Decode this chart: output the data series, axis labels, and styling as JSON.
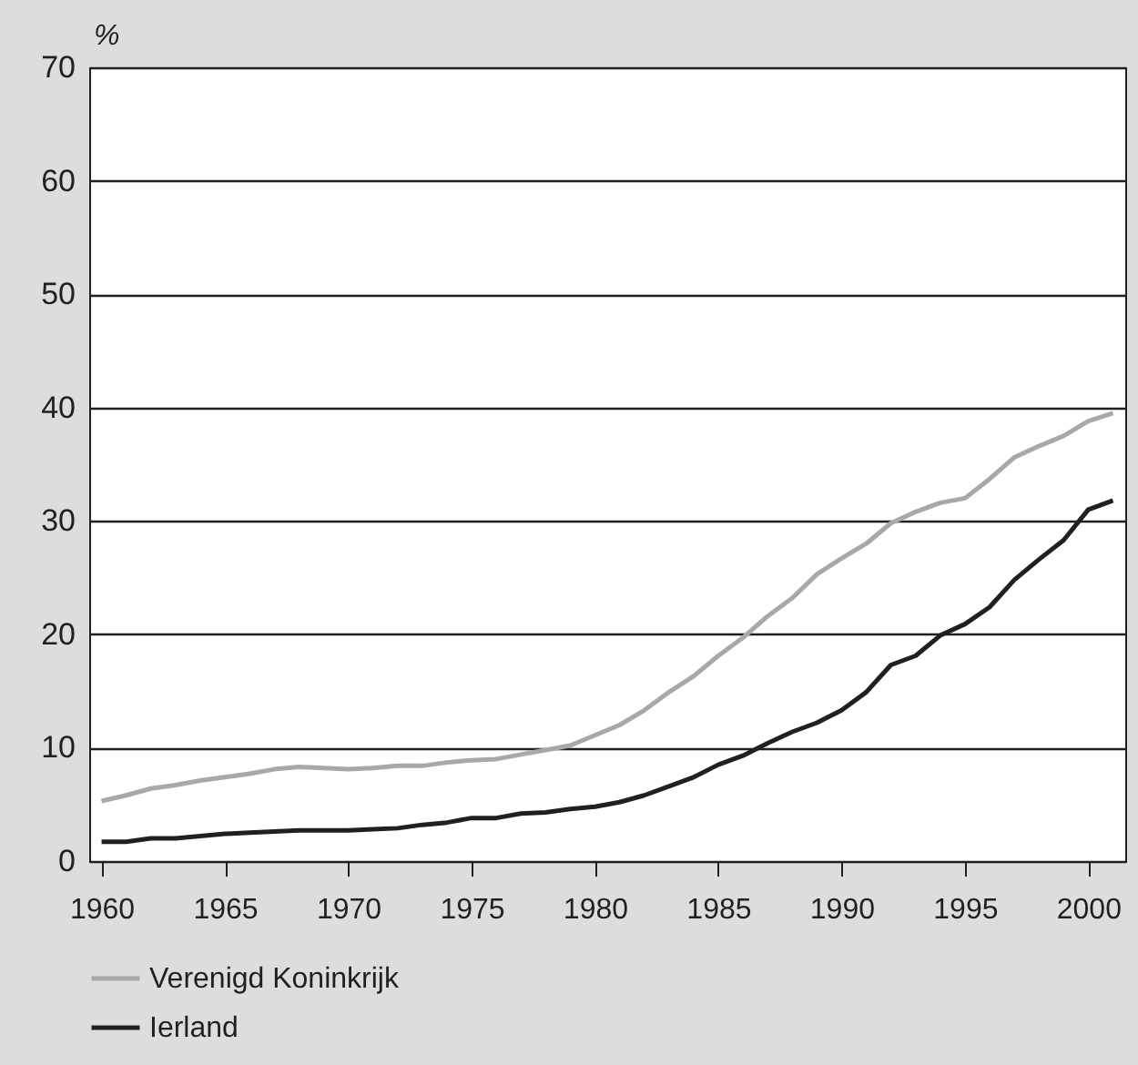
{
  "chart_data": {
    "type": "line",
    "ylabel": "%",
    "x": [
      1960,
      1961,
      1962,
      1963,
      1964,
      1965,
      1966,
      1967,
      1968,
      1969,
      1970,
      1971,
      1972,
      1973,
      1974,
      1975,
      1976,
      1977,
      1978,
      1979,
      1980,
      1981,
      1982,
      1983,
      1984,
      1985,
      1986,
      1987,
      1988,
      1989,
      1990,
      1991,
      1992,
      1993,
      1994,
      1995,
      1996,
      1997,
      1998,
      1999,
      2000,
      2001
    ],
    "series": [
      {
        "name": "Verenigd Koninkrijk",
        "color": "#a8a8a8",
        "values": [
          5.3,
          5.8,
          6.4,
          6.7,
          7.1,
          7.4,
          7.7,
          8.1,
          8.3,
          8.2,
          8.1,
          8.2,
          8.4,
          8.4,
          8.7,
          8.9,
          9.0,
          9.4,
          9.8,
          10.2,
          11.1,
          12.0,
          13.3,
          14.9,
          16.3,
          18.1,
          19.7,
          21.6,
          23.2,
          25.3,
          26.7,
          28.0,
          29.8,
          30.8,
          31.6,
          32.0,
          33.7,
          35.6,
          36.6,
          37.5,
          38.8,
          39.5
        ]
      },
      {
        "name": "Ierland",
        "color": "#231f20",
        "values": [
          1.7,
          1.7,
          2.0,
          2.0,
          2.2,
          2.4,
          2.5,
          2.6,
          2.7,
          2.7,
          2.7,
          2.8,
          2.9,
          3.2,
          3.4,
          3.8,
          3.8,
          4.2,
          4.3,
          4.6,
          4.8,
          5.2,
          5.8,
          6.6,
          7.4,
          8.5,
          9.3,
          10.4,
          11.4,
          12.2,
          13.3,
          14.9,
          17.3,
          18.1,
          19.9,
          20.9,
          22.4,
          24.8,
          26.6,
          28.3,
          31.0,
          31.8
        ]
      }
    ],
    "xlim": [
      1959.5,
      2001.5
    ],
    "xticks": [
      1960,
      1965,
      1970,
      1975,
      1980,
      1985,
      1990,
      1995,
      2000
    ],
    "ylim": [
      0,
      70
    ],
    "yticks": [
      0,
      10,
      20,
      30,
      40,
      50,
      60,
      70
    ],
    "grid": "y",
    "legend": "bottom",
    "marker": "none",
    "line_style": "solid"
  }
}
